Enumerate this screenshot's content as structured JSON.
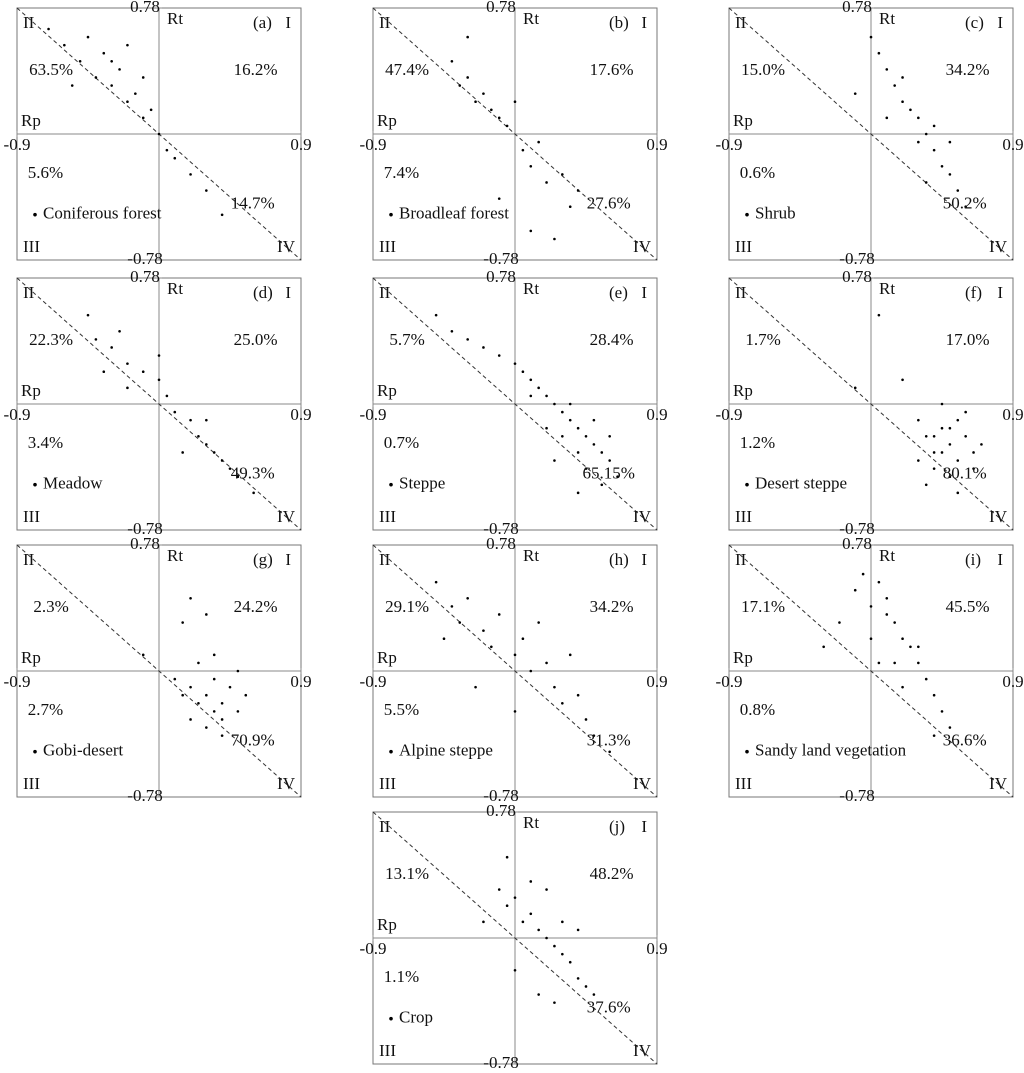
{
  "chart_data": [
    {
      "type": "scatter",
      "title": "(a)",
      "xlabel": "Rp",
      "ylabel": "Rt",
      "xlim": [
        -0.9,
        0.9
      ],
      "ylim": [
        -0.78,
        0.78
      ],
      "xticks": [
        -0.9,
        0.9
      ],
      "yticks": [
        -0.78,
        0.78
      ],
      "quadrants": [
        {
          "name": "I",
          "share": "16.2%"
        },
        {
          "name": "II",
          "share": "63.5%"
        },
        {
          "name": "III",
          "share": "5.6%"
        },
        {
          "name": "IV",
          "share": "14.7%"
        }
      ],
      "series": [
        {
          "name": "Coniferous forest",
          "color": "#000000",
          "x": [
            -0.6,
            -0.5,
            -0.45,
            -0.4,
            -0.35,
            -0.3,
            -0.3,
            -0.25,
            -0.2,
            -0.2,
            -0.15,
            -0.1,
            -0.05,
            0,
            0.05,
            0.1,
            0.2,
            0.3,
            0.4,
            -0.7,
            -0.55,
            -0.1
          ],
          "y": [
            0.55,
            0.45,
            0.6,
            0.35,
            0.5,
            0.3,
            0.45,
            0.4,
            0.2,
            0.55,
            0.25,
            0.1,
            0.15,
            0,
            -0.1,
            -0.15,
            -0.25,
            -0.35,
            -0.5,
            0.65,
            0.3,
            0.35
          ]
        }
      ]
    },
    {
      "type": "scatter",
      "title": "(b)",
      "xlabel": "Rp",
      "ylabel": "Rt",
      "xlim": [
        -0.9,
        0.9
      ],
      "ylim": [
        -0.78,
        0.78
      ],
      "xticks": [
        -0.9,
        0.9
      ],
      "yticks": [
        -0.78,
        0.78
      ],
      "quadrants": [
        {
          "name": "I",
          "share": "17.6%"
        },
        {
          "name": "II",
          "share": "47.4%"
        },
        {
          "name": "III",
          "share": "7.4%"
        },
        {
          "name": "IV",
          "share": "27.6%"
        }
      ],
      "series": [
        {
          "name": "Broadleaf forest",
          "color": "#000000",
          "x": [
            -0.4,
            -0.35,
            -0.3,
            -0.25,
            -0.2,
            -0.15,
            -0.1,
            -0.05,
            0,
            0.05,
            0.1,
            0.15,
            0.2,
            0.3,
            0.35,
            0.4,
            -0.1,
            0.1,
            0.25,
            -0.3
          ],
          "y": [
            0.45,
            0.3,
            0.35,
            0.2,
            0.25,
            0.15,
            0.1,
            0.05,
            0.2,
            -0.1,
            -0.2,
            -0.05,
            -0.3,
            -0.25,
            -0.45,
            -0.35,
            -0.4,
            -0.6,
            -0.65,
            0.6
          ]
        }
      ]
    },
    {
      "type": "scatter",
      "title": "(c)",
      "xlabel": "Rp",
      "ylabel": "Rt",
      "xlim": [
        -0.9,
        0.9
      ],
      "ylim": [
        -0.78,
        0.78
      ],
      "xticks": [
        -0.9,
        0.9
      ],
      "yticks": [
        -0.78,
        0.78
      ],
      "quadrants": [
        {
          "name": "I",
          "share": "34.2%"
        },
        {
          "name": "II",
          "share": "15.0%"
        },
        {
          "name": "III",
          "share": "0.6%"
        },
        {
          "name": "IV",
          "share": "50.2%"
        }
      ],
      "series": [
        {
          "name": "Shrub",
          "color": "#000000",
          "x": [
            0.05,
            0.1,
            0.15,
            0.2,
            0.25,
            0.3,
            0.35,
            0.4,
            0.45,
            0.5,
            0.55,
            0.6,
            0.2,
            0.3,
            0.4,
            -0.1,
            0,
            0.35,
            0.5,
            0.1
          ],
          "y": [
            0.5,
            0.4,
            0.3,
            0.35,
            0.15,
            0.1,
            0,
            -0.1,
            -0.2,
            -0.25,
            -0.35,
            -0.45,
            0.2,
            -0.05,
            0.05,
            0.25,
            0.6,
            -0.3,
            -0.05,
            0.1
          ]
        }
      ]
    },
    {
      "type": "scatter",
      "title": "(d)",
      "xlabel": "Rp",
      "ylabel": "Rt",
      "xlim": [
        -0.9,
        0.9
      ],
      "ylim": [
        -0.78,
        0.78
      ],
      "xticks": [
        -0.9,
        0.9
      ],
      "yticks": [
        -0.78,
        0.78
      ],
      "quadrants": [
        {
          "name": "I",
          "share": "25.0%"
        },
        {
          "name": "II",
          "share": "22.3%"
        },
        {
          "name": "III",
          "share": "3.4%"
        },
        {
          "name": "IV",
          "share": "49.3%"
        }
      ],
      "series": [
        {
          "name": "Meadow",
          "color": "#000000",
          "x": [
            -0.45,
            -0.4,
            -0.3,
            -0.25,
            -0.2,
            -0.1,
            0,
            0.05,
            0.1,
            0.2,
            0.25,
            0.3,
            0.35,
            0.4,
            0.45,
            0.5,
            -0.2,
            0,
            0.3,
            0.15,
            -0.35,
            0.6
          ],
          "y": [
            0.55,
            0.4,
            0.35,
            0.45,
            0.25,
            0.2,
            0.15,
            0.05,
            -0.05,
            -0.1,
            -0.2,
            -0.25,
            -0.3,
            -0.35,
            -0.4,
            -0.45,
            0.1,
            0.3,
            -0.1,
            -0.3,
            0.2,
            -0.55
          ]
        }
      ]
    },
    {
      "type": "scatter",
      "title": "(e)",
      "xlabel": "Rp",
      "ylabel": "Rt",
      "xlim": [
        -0.9,
        0.9
      ],
      "ylim": [
        -0.78,
        0.78
      ],
      "xticks": [
        -0.9,
        0.9
      ],
      "yticks": [
        -0.78,
        0.78
      ],
      "quadrants": [
        {
          "name": "I",
          "share": "28.4%"
        },
        {
          "name": "II",
          "share": "5.7%"
        },
        {
          "name": "III",
          "share": "0.7%"
        },
        {
          "name": "IV",
          "share": "65.15%"
        }
      ],
      "series": [
        {
          "name": "Steppe",
          "color": "#000000",
          "x": [
            -0.4,
            -0.3,
            -0.2,
            -0.1,
            0,
            0.05,
            0.1,
            0.15,
            0.2,
            0.25,
            0.3,
            0.35,
            0.4,
            0.45,
            0.5,
            0.55,
            0.6,
            0.3,
            0.4,
            0.5,
            0.45,
            0.35,
            0.25,
            0.55,
            0.6,
            0.2,
            0.1,
            0.65,
            0.4,
            -0.5
          ],
          "y": [
            0.45,
            0.4,
            0.35,
            0.3,
            0.25,
            0.2,
            0.15,
            0.1,
            0.05,
            0,
            -0.05,
            -0.1,
            -0.15,
            -0.2,
            -0.25,
            -0.3,
            -0.35,
            -0.2,
            -0.3,
            -0.1,
            -0.4,
            0,
            -0.35,
            -0.5,
            -0.2,
            -0.15,
            0.05,
            -0.45,
            -0.55,
            0.55
          ]
        }
      ]
    },
    {
      "type": "scatter",
      "title": "(f)",
      "xlabel": "Rp",
      "ylabel": "Rt",
      "xlim": [
        -0.9,
        0.9
      ],
      "ylim": [
        -0.78,
        0.78
      ],
      "xticks": [
        -0.9,
        0.9
      ],
      "yticks": [
        -0.78,
        0.78
      ],
      "quadrants": [
        {
          "name": "I",
          "share": "17.0%"
        },
        {
          "name": "II",
          "share": "1.7%"
        },
        {
          "name": "III",
          "share": "1.2%"
        },
        {
          "name": "IV",
          "share": "80.1%"
        }
      ],
      "series": [
        {
          "name": "Desert steppe",
          "color": "#000000",
          "x": [
            0.3,
            0.35,
            0.4,
            0.45,
            0.5,
            0.55,
            0.6,
            0.65,
            0.4,
            0.5,
            0.55,
            0.45,
            0.35,
            0.6,
            0.7,
            0.3,
            0.5,
            0.05,
            -0.1,
            0.2,
            0.55,
            0.45,
            0.65,
            0.4
          ],
          "y": [
            -0.1,
            -0.2,
            -0.3,
            -0.15,
            -0.25,
            -0.35,
            -0.2,
            -0.3,
            -0.4,
            -0.45,
            -0.1,
            0,
            -0.5,
            -0.05,
            -0.25,
            -0.35,
            -0.15,
            0.55,
            0.1,
            0.15,
            -0.55,
            -0.3,
            -0.4,
            -0.2
          ]
        }
      ]
    },
    {
      "type": "scatter",
      "title": "(g)",
      "xlabel": "Rp",
      "ylabel": "Rt",
      "xlim": [
        -0.9,
        0.9
      ],
      "ylim": [
        -0.78,
        0.78
      ],
      "xticks": [
        -0.9,
        0.9
      ],
      "yticks": [
        -0.78,
        0.78
      ],
      "quadrants": [
        {
          "name": "I",
          "share": "24.2%"
        },
        {
          "name": "II",
          "share": "2.3%"
        },
        {
          "name": "III",
          "share": "2.7%"
        },
        {
          "name": "IV",
          "share": "70.9%"
        }
      ],
      "series": [
        {
          "name": "Gobi-desert",
          "color": "#000000",
          "x": [
            0.1,
            0.15,
            0.2,
            0.25,
            0.3,
            0.35,
            0.4,
            0.45,
            0.5,
            0.2,
            0.3,
            0.4,
            0.25,
            0.35,
            0.5,
            0.55,
            0.15,
            0.3,
            0.4,
            -0.1,
            0.35,
            0.2
          ],
          "y": [
            -0.05,
            -0.15,
            -0.1,
            -0.2,
            -0.15,
            -0.05,
            -0.2,
            -0.1,
            -0.25,
            -0.3,
            -0.35,
            -0.4,
            0.05,
            0.1,
            0,
            -0.15,
            0.3,
            0.35,
            -0.3,
            0.1,
            -0.25,
            0.45
          ]
        }
      ]
    },
    {
      "type": "scatter",
      "title": "(h)",
      "xlabel": "Rp",
      "ylabel": "Rt",
      "xlim": [
        -0.9,
        0.9
      ],
      "ylim": [
        -0.78,
        0.78
      ],
      "xticks": [
        -0.9,
        0.9
      ],
      "yticks": [
        -0.78,
        0.78
      ],
      "quadrants": [
        {
          "name": "I",
          "share": "34.2%"
        },
        {
          "name": "II",
          "share": "29.1%"
        },
        {
          "name": "III",
          "share": "5.5%"
        },
        {
          "name": "IV",
          "share": "31.3%"
        }
      ],
      "series": [
        {
          "name": "Alpine steppe",
          "color": "#000000",
          "x": [
            -0.5,
            -0.4,
            -0.35,
            -0.3,
            -0.2,
            -0.15,
            -0.1,
            0,
            0.05,
            0.1,
            0.2,
            0.25,
            0.3,
            0.4,
            0.45,
            0.5,
            -0.25,
            0,
            0.15,
            0.35,
            -0.45,
            0.6
          ],
          "y": [
            0.55,
            0.4,
            0.3,
            0.45,
            0.25,
            0.15,
            0.35,
            0.1,
            0.2,
            0,
            0.05,
            -0.1,
            -0.2,
            -0.15,
            -0.3,
            -0.4,
            -0.1,
            -0.25,
            0.3,
            0.1,
            0.2,
            -0.5
          ]
        }
      ]
    },
    {
      "type": "scatter",
      "title": "(i)",
      "xlabel": "Rp",
      "ylabel": "Rt",
      "xlim": [
        -0.9,
        0.9
      ],
      "ylim": [
        -0.78,
        0.78
      ],
      "xticks": [
        -0.9,
        0.9
      ],
      "yticks": [
        -0.78,
        0.78
      ],
      "quadrants": [
        {
          "name": "I",
          "share": "45.5%"
        },
        {
          "name": "II",
          "share": "17.1%"
        },
        {
          "name": "III",
          "share": "0.8%"
        },
        {
          "name": "IV",
          "share": "36.6%"
        }
      ],
      "series": [
        {
          "name": "Sandy land vegetation",
          "color": "#000000",
          "x": [
            -0.1,
            -0.05,
            0,
            0.05,
            0.1,
            0.15,
            0.2,
            0.25,
            0.3,
            0.35,
            0.4,
            0.45,
            0.5,
            -0.2,
            0,
            0.1,
            0.3,
            0.2,
            0.4,
            -0.3,
            0.15,
            0.05
          ],
          "y": [
            0.5,
            0.6,
            0.4,
            0.55,
            0.35,
            0.3,
            0.2,
            0.15,
            0.05,
            -0.05,
            -0.15,
            -0.25,
            -0.35,
            0.3,
            0.2,
            0.45,
            0.15,
            -0.1,
            -0.4,
            0.15,
            0.05,
            0.05
          ]
        }
      ]
    },
    {
      "type": "scatter",
      "title": "(j)",
      "xlabel": "Rp",
      "ylabel": "Rt",
      "xlim": [
        -0.9,
        0.9
      ],
      "ylim": [
        -0.78,
        0.78
      ],
      "xticks": [
        -0.9,
        0.9
      ],
      "yticks": [
        -0.78,
        0.78
      ],
      "quadrants": [
        {
          "name": "I",
          "share": "48.2%"
        },
        {
          "name": "II",
          "share": "13.1%"
        },
        {
          "name": "III",
          "share": "1.1%"
        },
        {
          "name": "IV",
          "share": "37.6%"
        }
      ],
      "series": [
        {
          "name": "Crop",
          "color": "#000000",
          "x": [
            -0.1,
            -0.05,
            0,
            0.05,
            0.1,
            0.15,
            0.2,
            0.25,
            0.3,
            0.35,
            0.4,
            0.45,
            0.5,
            0.1,
            0.2,
            -0.2,
            0,
            0.3,
            0.15,
            0.25,
            -0.05,
            0.4
          ],
          "y": [
            0.3,
            0.2,
            0.25,
            0.1,
            0.15,
            0.05,
            0,
            -0.05,
            -0.1,
            -0.15,
            -0.25,
            -0.3,
            -0.35,
            0.35,
            0.3,
            0.1,
            -0.2,
            0.1,
            -0.35,
            -0.4,
            0.5,
            0.05
          ]
        }
      ]
    }
  ]
}
